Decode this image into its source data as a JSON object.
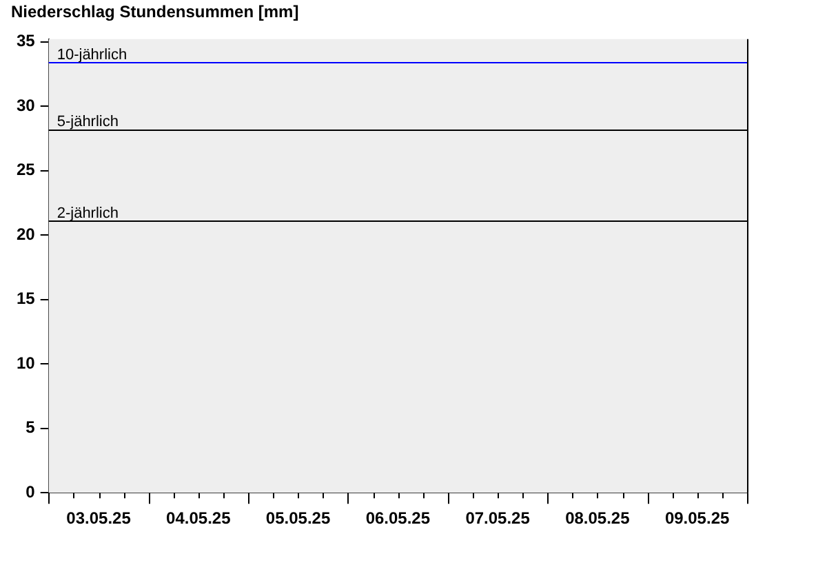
{
  "chart_data": {
    "type": "bar",
    "title": "Niederschlag Stundensummen [mm]",
    "categories": [
      "03.05.25",
      "04.05.25",
      "05.05.25",
      "06.05.25",
      "07.05.25",
      "08.05.25",
      "09.05.25"
    ],
    "values": [
      null,
      null,
      null,
      null,
      null,
      null,
      null
    ],
    "ylim": [
      0,
      35.2
    ],
    "yticks": [
      0,
      5,
      10,
      15,
      20,
      25,
      30,
      35
    ],
    "ref_lines": [
      {
        "axis": "y",
        "value": 33.4,
        "label": "10-jährlich",
        "color": "#0000ff"
      },
      {
        "axis": "y",
        "value": 28.2,
        "label": "5-jährlich",
        "color": "#000000"
      },
      {
        "axis": "y",
        "value": 21.1,
        "label": "2-jährlich",
        "color": "#000000"
      }
    ]
  }
}
